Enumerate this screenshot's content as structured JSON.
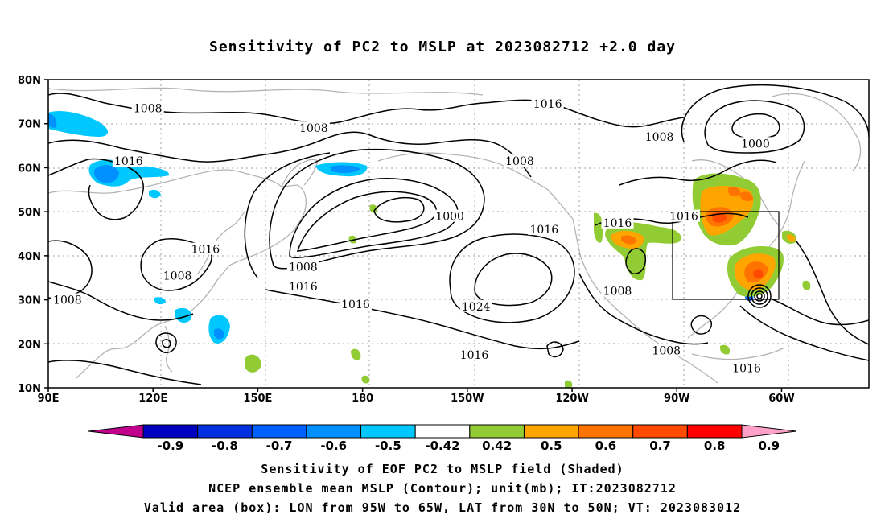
{
  "title": "Sensitivity of PC2 to MSLP at 2023082712 +2.0 day",
  "map": {
    "lat_ticks": [
      "80N",
      "70N",
      "60N",
      "50N",
      "40N",
      "30N",
      "20N",
      "10N"
    ],
    "lon_ticks": [
      "90E",
      "120E",
      "150E",
      "180",
      "150W",
      "120W",
      "90W",
      "60W"
    ],
    "extent": {
      "lon_min": 90,
      "lon_max": 325,
      "lat_min": 10,
      "lat_max": 80
    },
    "valid_box": {
      "lon_min": "95W",
      "lon_max": "65W",
      "lat_min": "30N",
      "lat_max": "50N"
    },
    "contour_labels": [
      {
        "text": "1008",
        "lon": 118.5,
        "lat": 73.5
      },
      {
        "text": "1008",
        "lon": 166,
        "lat": 69
      },
      {
        "text": "1016",
        "lon": 233,
        "lat": 74.5
      },
      {
        "text": "1008",
        "lon": 225,
        "lat": 61.5
      },
      {
        "text": "1008",
        "lon": 265,
        "lat": 67
      },
      {
        "text": "1000",
        "lon": 292.5,
        "lat": 65.5
      },
      {
        "text": "1016",
        "lon": 113,
        "lat": 61.5
      },
      {
        "text": "1000",
        "lon": 205,
        "lat": 49
      },
      {
        "text": "1016",
        "lon": 232,
        "lat": 46
      },
      {
        "text": "1016",
        "lon": 253,
        "lat": 47.5
      },
      {
        "text": "1016",
        "lon": 272,
        "lat": 49
      },
      {
        "text": "1016",
        "lon": 135,
        "lat": 41.5
      },
      {
        "text": "1008",
        "lon": 163,
        "lat": 37.5
      },
      {
        "text": "1016",
        "lon": 163,
        "lat": 33
      },
      {
        "text": "1008",
        "lon": 127,
        "lat": 35.5
      },
      {
        "text": "1008",
        "lon": 95.5,
        "lat": 30
      },
      {
        "text": "1016",
        "lon": 178,
        "lat": 29
      },
      {
        "text": "1024",
        "lon": 212.5,
        "lat": 28.5
      },
      {
        "text": "1008",
        "lon": 253,
        "lat": 32
      },
      {
        "text": "1008",
        "lon": 267,
        "lat": 18.5
      },
      {
        "text": "1016",
        "lon": 212,
        "lat": 17.5
      },
      {
        "text": "1016",
        "lon": 290,
        "lat": 14.5
      }
    ]
  },
  "colorbar": {
    "labels": [
      "-0.9",
      "-0.8",
      "-0.7",
      "-0.6",
      "-0.5",
      "-0.42",
      "0.42",
      "0.5",
      "0.6",
      "0.7",
      "0.8",
      "0.9"
    ],
    "colors": [
      "#0000c0",
      "#0030e0",
      "#0060ff",
      "#0090ff",
      "#00c8ff",
      "#ffffff",
      "#92cc34",
      "#ffa500",
      "#ff7300",
      "#ff4a00",
      "#ff0000"
    ],
    "low_end_color": "#c0008c",
    "high_end_color": "#ffa0c8"
  },
  "captions": [
    "Sensitivity of EOF PC2 to MSLP field (Shaded)",
    "NCEP ensemble mean MSLP (Contour); unit(mb); IT:2023082712",
    "Valid area (box): LON from 95W to 65W, LAT from 30N to 50N; VT: 2023083012"
  ]
}
